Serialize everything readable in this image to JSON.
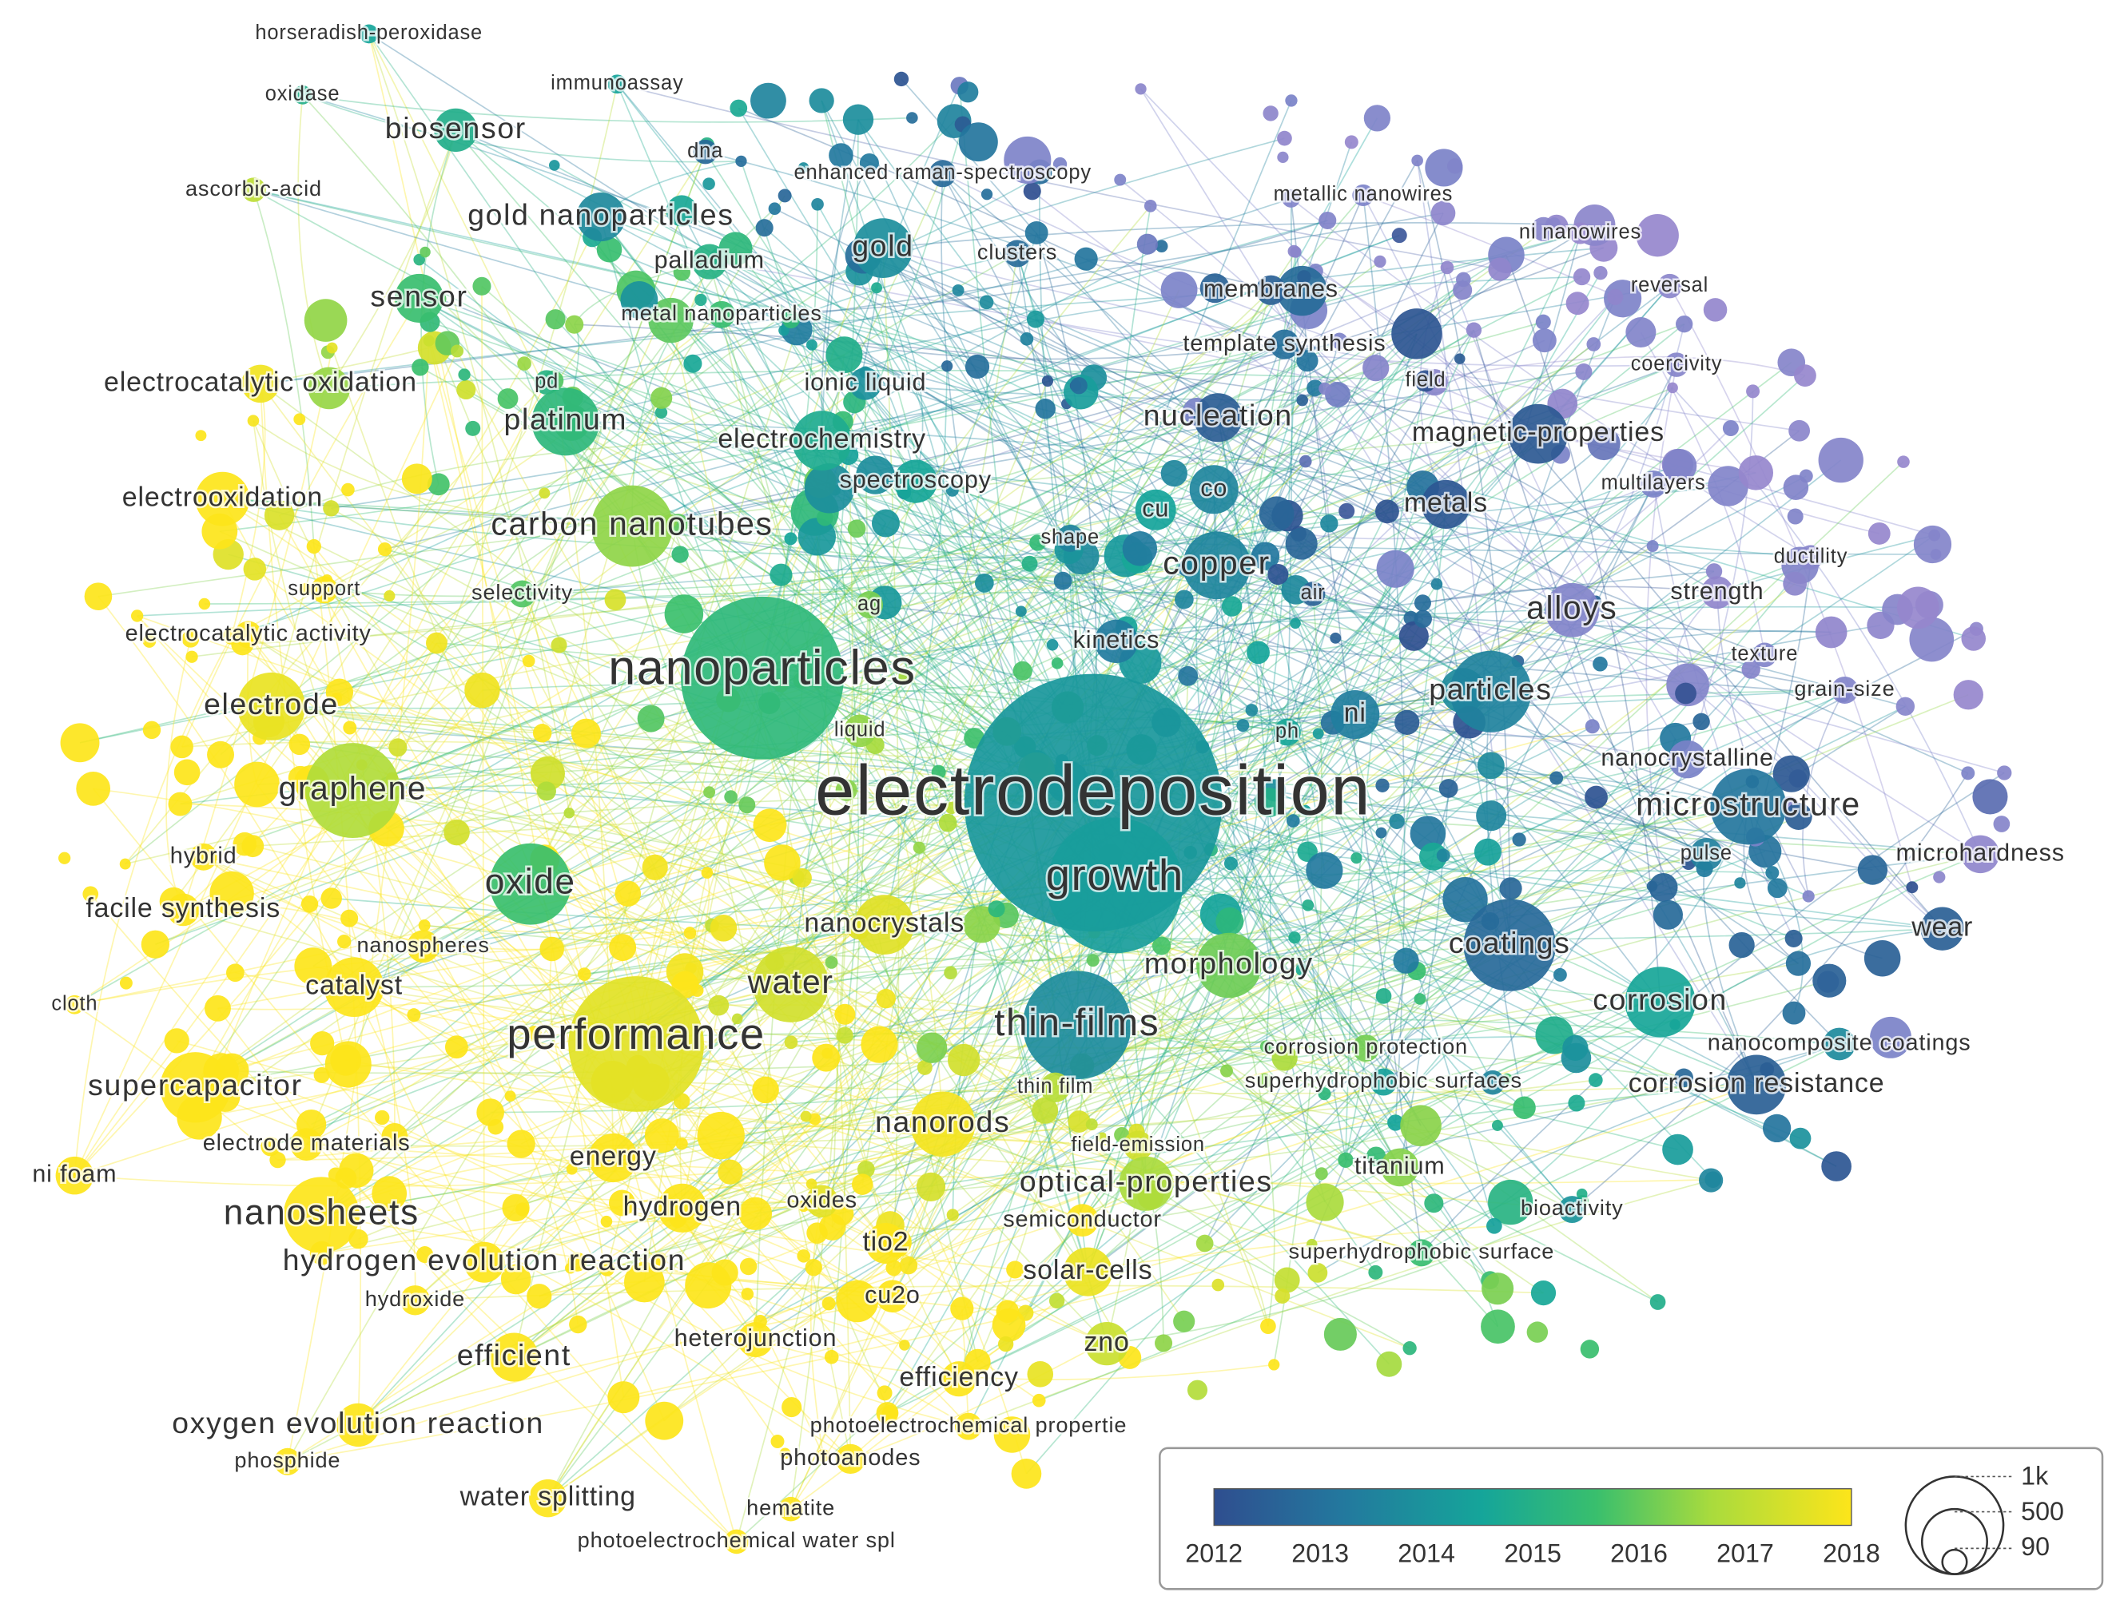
{
  "nodes": [
    {
      "label": "horseradish-peroxidase"
    },
    {
      "label": "oxidase"
    },
    {
      "label": "immunoassay"
    },
    {
      "label": "biosensor"
    },
    {
      "label": "dna"
    },
    {
      "label": "enhanced raman-spectroscopy"
    },
    {
      "label": "ascorbic-acid"
    },
    {
      "label": "metallic nanowires"
    },
    {
      "label": "gold nanoparticles"
    },
    {
      "label": "ni nanowires"
    },
    {
      "label": "palladium"
    },
    {
      "label": "gold"
    },
    {
      "label": "clusters"
    },
    {
      "label": "membranes"
    },
    {
      "label": "reversal"
    },
    {
      "label": "sensor"
    },
    {
      "label": "metal nanoparticles"
    },
    {
      "label": "template synthesis"
    },
    {
      "label": "electrocatalytic oxidation"
    },
    {
      "label": "pd"
    },
    {
      "label": "ionic liquid"
    },
    {
      "label": "field"
    },
    {
      "label": "coercivity"
    },
    {
      "label": "platinum"
    },
    {
      "label": "nucleation"
    },
    {
      "label": "magnetic-properties"
    },
    {
      "label": "electrochemistry"
    },
    {
      "label": "spectroscopy"
    },
    {
      "label": "multilayers"
    },
    {
      "label": "electrooxidation"
    },
    {
      "label": "cu"
    },
    {
      "label": "co"
    },
    {
      "label": "metals"
    },
    {
      "label": "carbon nanotubes"
    },
    {
      "label": "shape"
    },
    {
      "label": "copper"
    },
    {
      "label": "ductility"
    },
    {
      "label": "support"
    },
    {
      "label": "selectivity"
    },
    {
      "label": "air"
    },
    {
      "label": "strength"
    },
    {
      "label": "alloys"
    },
    {
      "label": "ag"
    },
    {
      "label": "electrocatalytic activity"
    },
    {
      "label": "kinetics"
    },
    {
      "label": "texture"
    },
    {
      "label": "nanoparticles"
    },
    {
      "label": "particles"
    },
    {
      "label": "grain-size"
    },
    {
      "label": "electrode"
    },
    {
      "label": "ni"
    },
    {
      "label": "liquid"
    },
    {
      "label": "ph"
    },
    {
      "label": "nanocrystalline"
    },
    {
      "label": "electrodeposition"
    },
    {
      "label": "graphene"
    },
    {
      "label": "microstructure"
    },
    {
      "label": "hybrid"
    },
    {
      "label": "pulse"
    },
    {
      "label": "microhardness"
    },
    {
      "label": "growth"
    },
    {
      "label": "oxide"
    },
    {
      "label": "facile synthesis"
    },
    {
      "label": "nanocrystals"
    },
    {
      "label": "wear"
    },
    {
      "label": "nanospheres"
    },
    {
      "label": "coatings"
    },
    {
      "label": "morphology"
    },
    {
      "label": "catalyst"
    },
    {
      "label": "water"
    },
    {
      "label": "cloth"
    },
    {
      "label": "corrosion"
    },
    {
      "label": "thin-films"
    },
    {
      "label": "performance"
    },
    {
      "label": "corrosion protection"
    },
    {
      "label": "nanocomposite coatings"
    },
    {
      "label": "thin film"
    },
    {
      "label": "superhydrophobic surfaces"
    },
    {
      "label": "corrosion resistance"
    },
    {
      "label": "supercapacitor"
    },
    {
      "label": "nanorods"
    },
    {
      "label": "electrode materials"
    },
    {
      "label": "field-emission"
    },
    {
      "label": "energy"
    },
    {
      "label": "ni foam"
    },
    {
      "label": "titanium"
    },
    {
      "label": "optical-properties"
    },
    {
      "label": "hydrogen"
    },
    {
      "label": "oxides"
    },
    {
      "label": "bioactivity"
    },
    {
      "label": "nanosheets"
    },
    {
      "label": "semiconductor"
    },
    {
      "label": "tio2"
    },
    {
      "label": "superhydrophobic surface"
    },
    {
      "label": "hydrogen evolution reaction"
    },
    {
      "label": "solar-cells"
    },
    {
      "label": "hydroxide"
    },
    {
      "label": "cu2o"
    },
    {
      "label": "heterojunction"
    },
    {
      "label": "zno"
    },
    {
      "label": "efficient"
    },
    {
      "label": "efficiency"
    },
    {
      "label": "oxygen evolution reaction"
    },
    {
      "label": "photoelectrochemical propertie"
    },
    {
      "label": "phosphide"
    },
    {
      "label": "photoanodes"
    },
    {
      "label": "water splitting"
    },
    {
      "label": "hematite"
    },
    {
      "label": "photoelectrochemical water spl"
    }
  ],
  "legend": {
    "color_ticks": [
      "2012",
      "2013",
      "2014",
      "2015",
      "2016",
      "2017",
      "2018"
    ],
    "size_labels": [
      "1k",
      "500",
      "90"
    ]
  }
}
